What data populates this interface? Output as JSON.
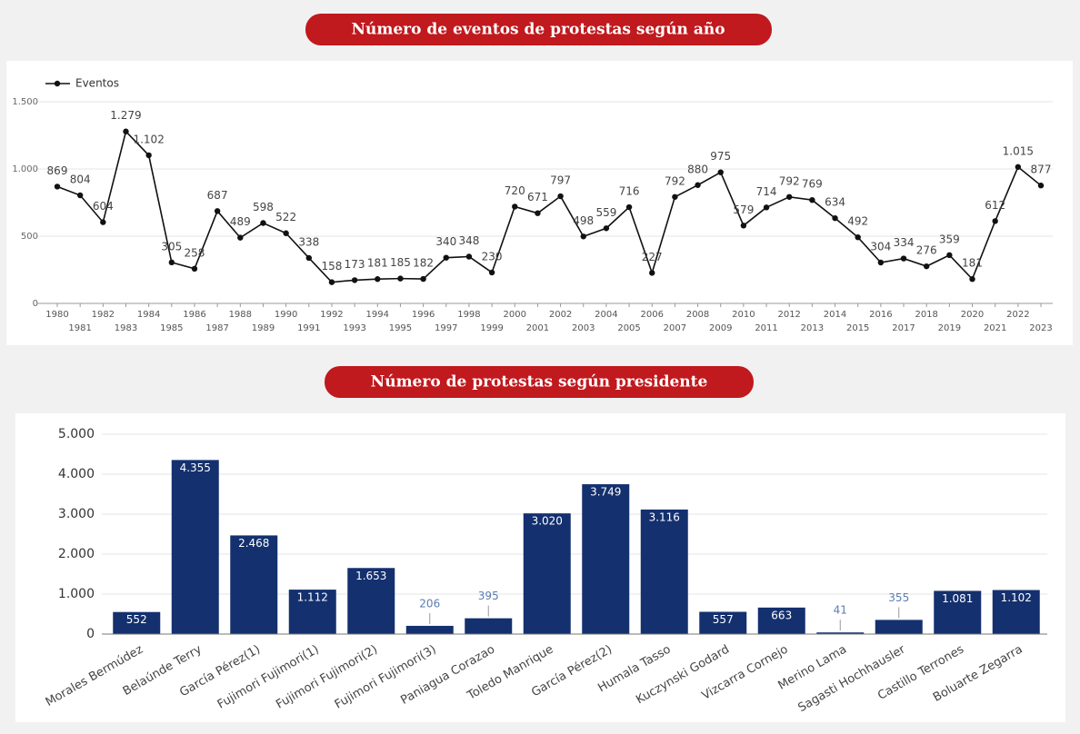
{
  "chart_data": [
    {
      "type": "line",
      "title": "Número de eventos de protestas según año",
      "categories": [
        "1980",
        "1981",
        "1982",
        "1983",
        "1984",
        "1985",
        "1986",
        "1987",
        "1988",
        "1989",
        "1990",
        "1991",
        "1992",
        "1993",
        "1994",
        "1995",
        "1996",
        "1997",
        "1998",
        "1999",
        "2000",
        "2001",
        "2002",
        "2003",
        "2004",
        "2005",
        "2006",
        "2007",
        "2008",
        "2009",
        "2010",
        "2011",
        "2012",
        "2013",
        "2014",
        "2015",
        "2016",
        "2017",
        "2018",
        "2019",
        "2020",
        "2021",
        "2022",
        "2023"
      ],
      "series": [
        {
          "name": "Eventos",
          "color": "#111111",
          "values": [
            869,
            804,
            604,
            1279,
            1102,
            305,
            258,
            687,
            489,
            598,
            522,
            338,
            158,
            173,
            181,
            185,
            182,
            340,
            348,
            230,
            720,
            671,
            797,
            498,
            559,
            716,
            227,
            792,
            880,
            975,
            579,
            714,
            792,
            769,
            634,
            492,
            304,
            334,
            276,
            359,
            181,
            612,
            1015,
            877
          ],
          "value_labels": [
            "869",
            "804",
            "604",
            "1.279",
            "1.102",
            "305",
            "258",
            "687",
            "489",
            "598",
            "522",
            "338",
            "158",
            "173",
            "181",
            "185",
            "182",
            "340",
            "348",
            "230",
            "720",
            "671",
            "797",
            "498",
            "559",
            "716",
            "227",
            "792",
            "880",
            "975",
            "579",
            "714",
            "792",
            "769",
            "634",
            "492",
            "304",
            "334",
            "276",
            "359",
            "181",
            "612",
            "1.015",
            "877"
          ]
        }
      ],
      "ylim": [
        0,
        1500
      ],
      "yticks": [
        0,
        500,
        {
          "value": 1000,
          "label": "1.000"
        },
        {
          "value": 1500,
          "label": "1.500"
        }
      ],
      "grid": true,
      "legend": "top-left"
    },
    {
      "type": "bar",
      "title": "Número de protestas según presidente",
      "categories": [
        "Morales Bermúdez",
        "Belaúnde Terry",
        "García Pérez(1)",
        "Fujimori Fujimori(1)",
        "Fujimori Fujimori(2)",
        "Fujimori Fujimori(3)",
        "Paniagua Corazao",
        "Toledo Manrique",
        "García Pérez(2)",
        "Humala Tasso",
        "Kuczynski Godard",
        "Vizcarra Cornejo",
        "Merino Lama",
        "Sagasti Hochhausler",
        "Castillo Terrones",
        "Boluarte Zegarra"
      ],
      "values": [
        552,
        4355,
        2468,
        1112,
        1653,
        206,
        395,
        3020,
        3749,
        3116,
        557,
        663,
        41,
        355,
        1081,
        1102
      ],
      "value_labels": [
        "552",
        "4.355",
        "2.468",
        "1.112",
        "1.653",
        "206",
        "395",
        "3.020",
        "3.749",
        "3.116",
        "557",
        "663",
        "41",
        "355",
        "1.081",
        "1.102"
      ],
      "color": "#14306e",
      "ylim": [
        0,
        5000
      ],
      "yticks": [
        0,
        {
          "value": 1000,
          "label": "1.000"
        },
        {
          "value": 2000,
          "label": "2.000"
        },
        {
          "value": 3000,
          "label": "3.000"
        },
        {
          "value": 4000,
          "label": "4.000"
        },
        {
          "value": 5000,
          "label": "5.000"
        }
      ],
      "grid": true
    }
  ]
}
